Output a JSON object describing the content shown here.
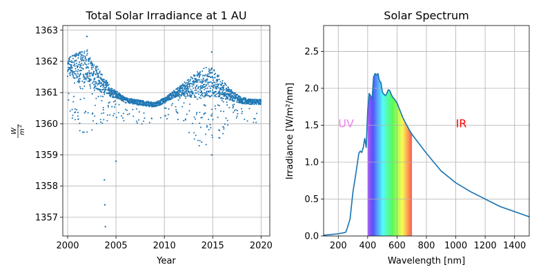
{
  "colors": {
    "series": "#1f77b4",
    "grid": "#b0b0b0",
    "uv_label": "#ee82ee",
    "ir_label": "#ff0000"
  },
  "chart_data": [
    {
      "type": "scatter",
      "title": "Total Solar Irradiance at 1 AU",
      "xlabel": "Year",
      "ylabel_fraction": {
        "numerator": "W",
        "denominator": "m",
        "denominator_exponent": "2"
      },
      "xlim": [
        1999.5,
        2020.9
      ],
      "ylim": [
        1356.4,
        1363.15
      ],
      "xticks": [
        2000,
        2005,
        2010,
        2015,
        2020
      ],
      "yticks": [
        1357,
        1358,
        1359,
        1360,
        1361,
        1362,
        1363
      ],
      "grid": true,
      "trend": [
        {
          "x": 2000.0,
          "y": 1361.8
        },
        {
          "x": 2000.5,
          "y": 1361.9
        },
        {
          "x": 2001.0,
          "y": 1361.8
        },
        {
          "x": 2001.5,
          "y": 1361.8
        },
        {
          "x": 2002.0,
          "y": 1361.9
        },
        {
          "x": 2002.5,
          "y": 1361.6
        },
        {
          "x": 2003.0,
          "y": 1361.5
        },
        {
          "x": 2003.5,
          "y": 1361.3
        },
        {
          "x": 2004.0,
          "y": 1361.2
        },
        {
          "x": 2004.5,
          "y": 1361.0
        },
        {
          "x": 2005.0,
          "y": 1360.95
        },
        {
          "x": 2006.0,
          "y": 1360.75
        },
        {
          "x": 2007.0,
          "y": 1360.7
        },
        {
          "x": 2008.0,
          "y": 1360.65
        },
        {
          "x": 2009.0,
          "y": 1360.6
        },
        {
          "x": 2010.0,
          "y": 1360.75
        },
        {
          "x": 2011.0,
          "y": 1360.95
        },
        {
          "x": 2012.0,
          "y": 1361.1
        },
        {
          "x": 2013.0,
          "y": 1361.2
        },
        {
          "x": 2014.0,
          "y": 1361.3
        },
        {
          "x": 2015.0,
          "y": 1361.35
        },
        {
          "x": 2016.0,
          "y": 1361.1
        },
        {
          "x": 2017.0,
          "y": 1360.9
        },
        {
          "x": 2018.0,
          "y": 1360.75
        },
        {
          "x": 2019.0,
          "y": 1360.7
        },
        {
          "x": 2020.0,
          "y": 1360.7
        }
      ],
      "notable_points": [
        {
          "x": 2002.0,
          "y": 1362.8
        },
        {
          "x": 2003.8,
          "y": 1358.2
        },
        {
          "x": 2003.85,
          "y": 1357.4
        },
        {
          "x": 2003.9,
          "y": 1356.7
        },
        {
          "x": 2005.0,
          "y": 1358.8
        },
        {
          "x": 2014.9,
          "y": 1362.3
        },
        {
          "x": 2014.9,
          "y": 1359.0
        }
      ]
    },
    {
      "type": "line",
      "title": "Solar Spectrum",
      "xlabel": "Wavelength [nm]",
      "ylabel": "Irradiance [W/m²/nm]",
      "xlim": [
        100,
        1500
      ],
      "ylim": [
        0,
        2.85
      ],
      "xticks": [
        200,
        400,
        600,
        800,
        1000,
        1200,
        1400
      ],
      "yticks": [
        0.0,
        0.5,
        1.0,
        1.5,
        2.0,
        2.5
      ],
      "ytick_labels": [
        "0.0",
        "0.5",
        "1.0",
        "1.5",
        "2.0",
        "2.5"
      ],
      "grid": true,
      "visible_band_nm": [
        400,
        700
      ],
      "annotations": [
        {
          "text": "UV",
          "x": 200,
          "y": 1.47
        },
        {
          "text": "IR",
          "x": 1000,
          "y": 1.47
        }
      ],
      "x": [
        100,
        200,
        250,
        260,
        280,
        300,
        320,
        340,
        350,
        360,
        370,
        380,
        390,
        400,
        410,
        420,
        430,
        440,
        450,
        460,
        470,
        480,
        490,
        500,
        510,
        520,
        530,
        540,
        550,
        560,
        570,
        580,
        600,
        620,
        640,
        660,
        680,
        700,
        750,
        800,
        850,
        900,
        1000,
        1100,
        1200,
        1300,
        1400,
        1500
      ],
      "y": [
        0.01,
        0.03,
        0.05,
        0.1,
        0.23,
        0.6,
        0.85,
        1.12,
        1.15,
        1.13,
        1.2,
        1.32,
        1.2,
        1.7,
        1.93,
        1.9,
        1.85,
        2.15,
        2.2,
        2.18,
        2.2,
        2.1,
        2.08,
        1.95,
        1.92,
        1.9,
        1.93,
        1.98,
        1.97,
        1.92,
        1.88,
        1.86,
        1.8,
        1.7,
        1.6,
        1.52,
        1.45,
        1.38,
        1.25,
        1.12,
        1.0,
        0.88,
        0.72,
        0.6,
        0.5,
        0.4,
        0.33,
        0.26
      ]
    }
  ]
}
